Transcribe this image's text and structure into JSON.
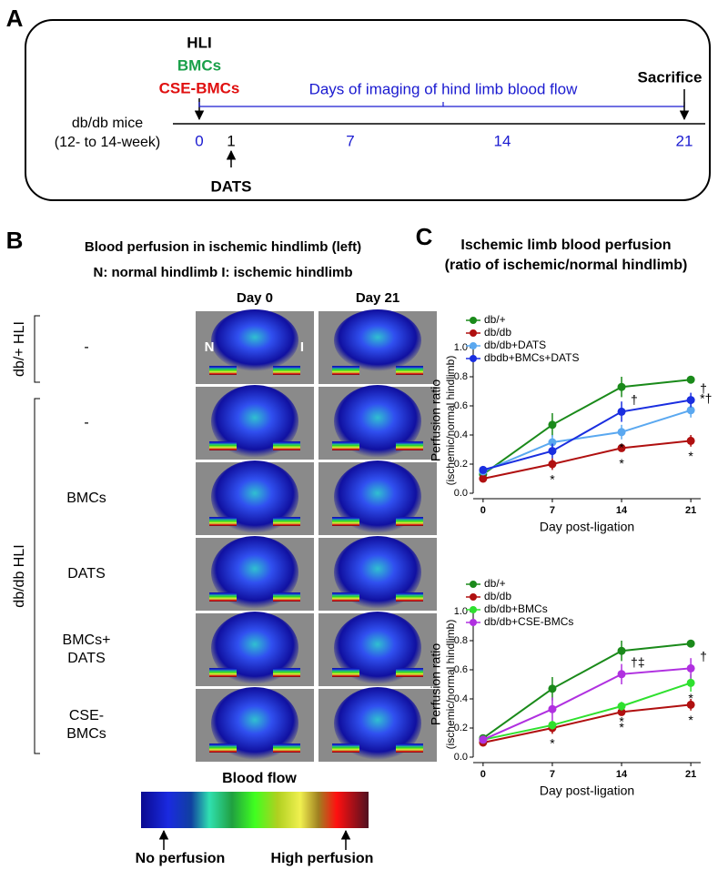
{
  "panel_a": {
    "label": "A",
    "events": [
      {
        "text": "HLI",
        "color": "#000000"
      },
      {
        "text": "BMCs",
        "color": "#1aa04a"
      },
      {
        "text": "CSE-BMCs",
        "color": "#e01010"
      }
    ],
    "imaging": "Days of imaging of hind limb blood flow",
    "sacrifice": "Sacrifice",
    "mice": [
      "db/db mice",
      "(12- to 14-week)"
    ],
    "days": [
      0,
      1,
      7,
      14,
      21
    ],
    "day_colors": [
      "#1a1ad0",
      "#000000",
      "#1a1ad0",
      "#1a1ad0",
      "#1a1ad0"
    ],
    "dats": "DATS"
  },
  "panel_b": {
    "label": "B",
    "title": "Blood perfusion in ischemic hindlimb (left)",
    "subtitle": "N: normal hindlimb  I: ischemic hindlimb",
    "columns": [
      "Day 0",
      "Day 21"
    ],
    "groups": [
      "db/+ HLI",
      "db/db HLI"
    ],
    "rows": [
      [
        "-"
      ],
      [
        "-"
      ],
      [
        "BMCs"
      ],
      [
        "DATS"
      ],
      [
        "BMCs+",
        "DATS"
      ],
      [
        "CSE-",
        "BMCs"
      ]
    ],
    "image_labels": [
      "N",
      "I"
    ],
    "scale_title": "Blood flow",
    "scale_low": "No perfusion",
    "scale_high": "High perfusion"
  },
  "panel_c": {
    "label": "C",
    "title": [
      "Ischemic limb blood perfusion",
      "(ratio of ischemic/normal hindlimb)"
    ]
  },
  "chart_data": [
    {
      "type": "line",
      "y_label": [
        "Perfusion ratio",
        "(ischemic/normal hindlimb)"
      ],
      "x_label": "Day post-ligation",
      "x": [
        0,
        7,
        14,
        21
      ],
      "xlim": [
        -1,
        22
      ],
      "xticks": [
        0,
        7,
        14,
        21
      ],
      "ylim": [
        0,
        1
      ],
      "yticks": [
        {
          "value": 0,
          "label": "0.0"
        },
        0.2,
        0.4,
        0.6,
        0.8,
        {
          "value": 1,
          "label": "1.0"
        }
      ],
      "series": [
        {
          "name": "db/+",
          "color": "#1a8a1a",
          "values": [
            0.13,
            0.47,
            0.73,
            0.78
          ],
          "errors": [
            0.02,
            0.08,
            0.07,
            0.01
          ],
          "point_labels": [
            null,
            null,
            null,
            null
          ]
        },
        {
          "name": "db/db",
          "color": "#b01010",
          "values": [
            0.1,
            0.2,
            0.31,
            0.36
          ],
          "errors": [
            0.01,
            0.04,
            0.02,
            0.04
          ],
          "point_labels": [
            null,
            "*",
            "*",
            "*"
          ]
        },
        {
          "name": "db/db+DATS",
          "color": "#5aa8f0",
          "values": [
            0.15,
            0.35,
            0.42,
            0.57
          ],
          "errors": [
            0.02,
            0.05,
            0.05,
            0.05
          ],
          "point_labels": [
            null,
            null,
            "*",
            "*†"
          ]
        },
        {
          "name": "dbdb+BMCs+DATS",
          "color": "#1a2ee0",
          "values": [
            0.16,
            0.29,
            0.56,
            0.64
          ],
          "errors": [
            0.02,
            0.05,
            0.07,
            0.05
          ],
          "point_labels": [
            null,
            null,
            "†",
            "†"
          ]
        }
      ]
    },
    {
      "type": "line",
      "y_label": [
        "Perfusion ratio",
        "(ischemic/normal hindlimb)"
      ],
      "x_label": "Day post-ligation",
      "x": [
        0,
        7,
        14,
        21
      ],
      "xlim": [
        -1,
        22
      ],
      "xticks": [
        0,
        7,
        14,
        21
      ],
      "ylim": [
        0,
        1
      ],
      "yticks": [
        {
          "value": 0,
          "label": "0.0"
        },
        0.2,
        0.4,
        0.6,
        0.8,
        {
          "value": 1,
          "label": "1.0"
        }
      ],
      "series": [
        {
          "name": "db/+",
          "color": "#1a8a1a",
          "values": [
            0.13,
            0.47,
            0.73,
            0.78
          ],
          "errors": [
            0.02,
            0.08,
            0.07,
            0.01
          ],
          "point_labels": [
            null,
            null,
            null,
            null
          ]
        },
        {
          "name": "db/db",
          "color": "#b01010",
          "values": [
            0.1,
            0.2,
            0.31,
            0.36
          ],
          "errors": [
            0.01,
            0.04,
            0.02,
            0.04
          ],
          "point_labels": [
            null,
            "*",
            "*",
            "*"
          ]
        },
        {
          "name": "db/db+BMCs",
          "color": "#2ee02e",
          "values": [
            0.12,
            0.22,
            0.35,
            0.51
          ],
          "errors": [
            0.02,
            0.03,
            0.03,
            0.06
          ],
          "point_labels": [
            null,
            null,
            "*",
            "*"
          ]
        },
        {
          "name": "db/db+CSE-BMCs",
          "color": "#b030e0",
          "values": [
            0.12,
            0.33,
            0.57,
            0.61
          ],
          "errors": [
            0.02,
            0.08,
            0.07,
            0.07
          ],
          "point_labels": [
            null,
            null,
            "†‡",
            "†"
          ]
        }
      ]
    }
  ]
}
